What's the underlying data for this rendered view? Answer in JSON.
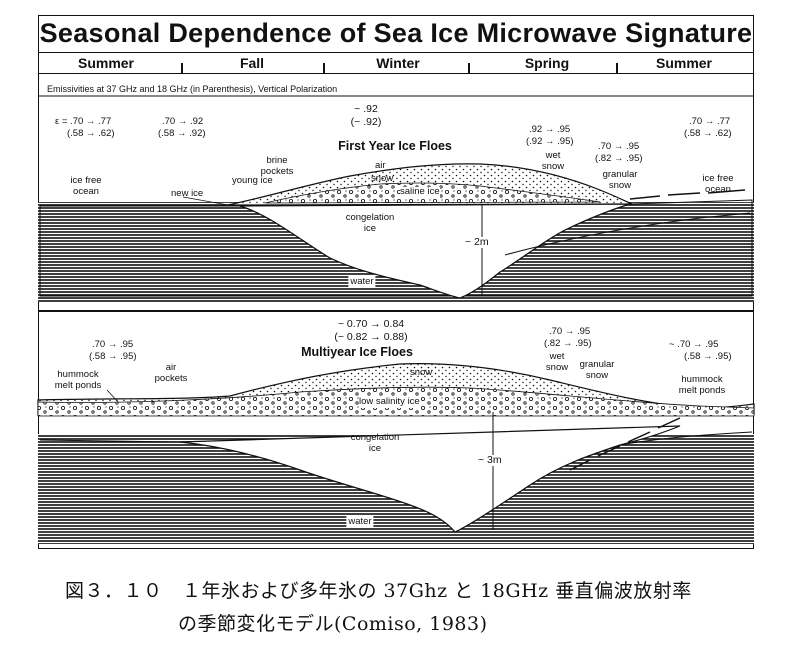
{
  "title": "Seasonal Dependence of Sea Ice Microwave Signature",
  "seasons": [
    "Summer",
    "Fall",
    "Winter",
    "Spring",
    "Summer"
  ],
  "emissivity_note": "Emissivities at 37 GHz and 18 GHz (in Parenthesis), Vertical Polarization",
  "panel1": {
    "heading": "First Year Ice Floes",
    "emis_open_ocean_37": "ε = .70 → .77",
    "emis_open_ocean_18": "(.58 → .62)",
    "emis_new_ice_37": ".70 → .92",
    "emis_new_ice_18": "(.58 → .92)",
    "emis_winter_37": "~ .92",
    "emis_winter_18": "(~ .92)",
    "emis_wet_snow_37": ".92 → .95",
    "emis_wet_snow_18": "(.92 → .95)",
    "emis_granular_37": ".70 → .95",
    "emis_granular_18": "(.82 → .95)",
    "emis_summer_37": ".70 → .77",
    "emis_summer_18": "(.58 → .62)",
    "ice_free_ocean_left": "ice free\nocean",
    "new_ice": "new ice",
    "young_ice": "young ice",
    "brine_pockets": "brine\npockets",
    "air": "air",
    "snow": "snow",
    "saline_ice": "saline ice",
    "wet_snow": "wet\nsnow",
    "granular_snow": "granular\nsnow",
    "ice_free_ocean_right": "ice free\nocean",
    "congelation_ice": "congelation\nice",
    "thickness": "~ 2m",
    "water": "water"
  },
  "panel2": {
    "heading": "Multiyear Ice Floes",
    "emis_left_37": ".70 → .95",
    "emis_left_18": "(.58 → .95)",
    "emis_winter_37": "~ 0.70 → 0.84",
    "emis_winter_18": "(~ 0.82 → 0.88)",
    "emis_spring_37": ".70 → .95",
    "emis_spring_18": "(.82 → .95)",
    "emis_right_37": "~ .70 → .95",
    "emis_right_18": "(.58 → .95)",
    "hummock_left": "hummock\nmelt ponds",
    "air_pockets": "air\npockets",
    "snow": "snow",
    "low_salinity_ice": "low salinity ice",
    "wet_snow": "wet\nsnow",
    "granular_snow": "granular\nsnow",
    "hummock_right": "hummock\nmelt ponds",
    "congelation_ice": "congelation\nice",
    "thickness": "~ 3m",
    "water": "water"
  },
  "caption_line1": "図３．１０　１年氷および多年氷の 37Ghz と 18GHz 垂直偏波放射率",
  "caption_line2": "の季節変化モデル(Comiso, 1983)"
}
